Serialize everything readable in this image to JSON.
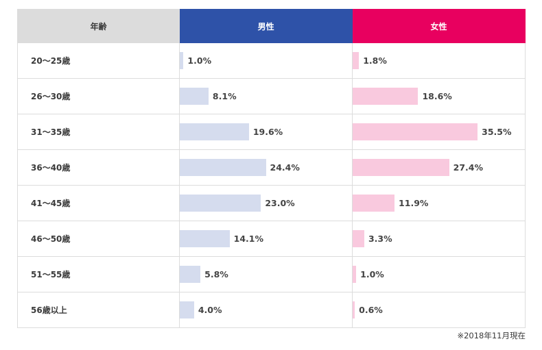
{
  "table": {
    "headers": {
      "age": "年齢",
      "male": "男性",
      "female": "女性"
    },
    "rows": [
      {
        "age": "20〜25歳",
        "male": "1.0%",
        "female": "1.8%"
      },
      {
        "age": "26〜30歳",
        "male": "8.1%",
        "female": "18.6%"
      },
      {
        "age": "31〜35歳",
        "male": "19.6%",
        "female": "35.5%"
      },
      {
        "age": "36〜40歳",
        "male": "24.4%",
        "female": "27.4%"
      },
      {
        "age": "41〜45歳",
        "male": "23.0%",
        "female": "11.9%"
      },
      {
        "age": "46〜50歳",
        "male": "14.1%",
        "female": "3.3%"
      },
      {
        "age": "51〜55歳",
        "male": "5.8%",
        "female": "1.0%"
      },
      {
        "age": "56歳以上",
        "male": "4.0%",
        "female": "0.6%"
      }
    ]
  },
  "note": "※2018年11月現在",
  "colors": {
    "header_age": "#dcdcdc",
    "header_male": "#2e52a8",
    "header_female": "#e8005f",
    "bar_male": "#d5dcee",
    "bar_female": "#f9c9de"
  },
  "chart_data": {
    "type": "bar",
    "orientation": "horizontal",
    "title": "",
    "categories": [
      "20〜25歳",
      "26〜30歳",
      "31〜35歳",
      "36〜40歳",
      "41〜45歳",
      "46〜50歳",
      "51〜55歳",
      "56歳以上"
    ],
    "series": [
      {
        "name": "男性",
        "values": [
          1.0,
          8.1,
          19.6,
          24.4,
          23.0,
          14.1,
          5.8,
          4.0
        ]
      },
      {
        "name": "女性",
        "values": [
          1.8,
          18.6,
          35.5,
          27.4,
          11.9,
          3.3,
          1.0,
          0.6
        ]
      }
    ],
    "xlabel": "",
    "ylabel": "年齢",
    "unit": "%",
    "grid": false,
    "legend": "column headers",
    "annotations": [
      "※2018年11月現在"
    ]
  }
}
